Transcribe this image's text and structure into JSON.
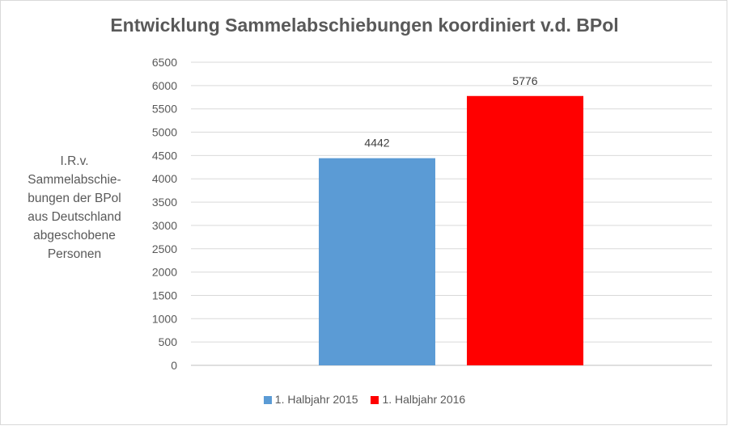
{
  "chart_data": {
    "type": "bar",
    "title": "Entwicklung Sammelabschiebungen koordiniert v.d. BPol",
    "ylabel": "I.R.v.\nSammelabschie-\nbungen der BPol\naus Deutschland\nabgeschobene\nPersonen",
    "xlabel": "",
    "ylim": [
      0,
      6500
    ],
    "ytick_step": 500,
    "grid": true,
    "legend_placement": "bottom",
    "series": [
      {
        "name": "1. Halbjahr 2015",
        "value": 4442,
        "color": "#5b9bd5"
      },
      {
        "name": "1. Halbjahr 2016",
        "value": 5776,
        "color": "#ff0000"
      }
    ]
  }
}
